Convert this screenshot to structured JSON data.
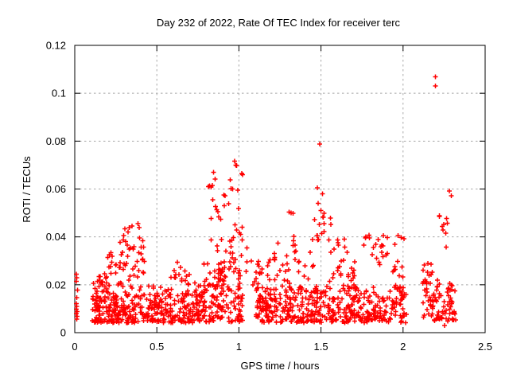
{
  "chart_data": {
    "type": "scatter",
    "title": "Day 232 of 2022, Rate Of TEC Index for receiver terc",
    "xlabel": "GPS time / hours",
    "ylabel": "ROTI / TECUs",
    "xlim": [
      0,
      2.5
    ],
    "ylim": [
      0,
      0.12
    ],
    "xticks": [
      0,
      0.5,
      1,
      1.5,
      2,
      2.5
    ],
    "yticks": [
      0,
      0.02,
      0.04,
      0.06,
      0.08,
      0.1,
      0.12
    ],
    "xtick_labels": [
      "0",
      "0.5",
      "1",
      "1.5",
      "2",
      "2.5"
    ],
    "ytick_labels": [
      "0",
      "0.02",
      "0.04",
      "0.06",
      "0.08",
      "0.1",
      "0.12"
    ],
    "grid": true,
    "legend": "none",
    "marker": "plus",
    "marker_color": "#ff0000",
    "grid_color": "#a8a8a8",
    "border_color": "#000000",
    "background": "#ffffff",
    "series_name": "ROTI",
    "notable_points": [
      [
        0.01,
        0.0245
      ],
      [
        0.013,
        0.023
      ],
      [
        0.01,
        0.0215
      ],
      [
        0.016,
        0.0178
      ],
      [
        0.012,
        0.0146
      ],
      [
        0.01,
        0.0122
      ],
      [
        0.013,
        0.011
      ],
      [
        0.01,
        0.0098
      ],
      [
        0.014,
        0.0088
      ],
      [
        0.01,
        0.0079
      ],
      [
        0.015,
        0.0068
      ],
      [
        0.011,
        0.0057
      ],
      [
        0.305,
        0.0433
      ],
      [
        0.35,
        0.0446
      ],
      [
        0.385,
        0.0455
      ],
      [
        0.415,
        0.0384
      ],
      [
        0.42,
        0.0357
      ],
      [
        0.425,
        0.0298
      ],
      [
        0.42,
        0.0249
      ],
      [
        0.625,
        0.0295
      ],
      [
        0.645,
        0.0272
      ],
      [
        0.814,
        0.061
      ],
      [
        0.822,
        0.0613
      ],
      [
        0.83,
        0.0608
      ],
      [
        0.838,
        0.0615
      ],
      [
        0.845,
        0.067
      ],
      [
        0.856,
        0.0641
      ],
      [
        0.84,
        0.0555
      ],
      [
        0.873,
        0.0506
      ],
      [
        0.878,
        0.0484
      ],
      [
        0.888,
        0.0473
      ],
      [
        0.908,
        0.0575
      ],
      [
        0.915,
        0.0572
      ],
      [
        0.938,
        0.0539
      ],
      [
        0.948,
        0.0638
      ],
      [
        0.952,
        0.0602
      ],
      [
        0.962,
        0.06
      ],
      [
        0.973,
        0.0717
      ],
      [
        0.982,
        0.07
      ],
      [
        0.987,
        0.0698
      ],
      [
        0.994,
        0.0595
      ],
      [
        1.018,
        0.0664
      ],
      [
        1.023,
        0.066
      ],
      [
        1.02,
        0.044
      ],
      [
        1.01,
        0.041
      ],
      [
        1.048,
        0.0354
      ],
      [
        1.075,
        0.03
      ],
      [
        1.118,
        0.0298
      ],
      [
        1.128,
        0.0251
      ],
      [
        1.138,
        0.025
      ],
      [
        1.305,
        0.0503
      ],
      [
        1.318,
        0.05
      ],
      [
        1.33,
        0.0498
      ],
      [
        1.493,
        0.0787
      ],
      [
        1.478,
        0.0605
      ],
      [
        1.508,
        0.058
      ],
      [
        1.482,
        0.054
      ],
      [
        1.5,
        0.051
      ],
      [
        1.515,
        0.0482
      ],
      [
        1.558,
        0.0478
      ],
      [
        1.56,
        0.0452
      ],
      [
        1.772,
        0.0395
      ],
      [
        1.792,
        0.0408
      ],
      [
        1.88,
        0.0405
      ],
      [
        1.905,
        0.0398
      ],
      [
        1.97,
        0.0405
      ],
      [
        1.99,
        0.0398
      ],
      [
        2.005,
        0.0392
      ],
      [
        2.198,
        0.1068
      ],
      [
        2.197,
        0.1031
      ],
      [
        2.282,
        0.0592
      ],
      [
        2.293,
        0.0572
      ],
      [
        2.262,
        0.0357
      ],
      [
        2.152,
        0.029
      ],
      [
        2.252,
        0.003
      ]
    ],
    "density_clusters": [
      {
        "x": [
          0.105,
          0.21
        ],
        "y": [
          0.016,
          0.0248
        ],
        "n": 22,
        "skew": 1.0
      },
      {
        "x": [
          0.105,
          0.45
        ],
        "y": [
          0.0042,
          0.016
        ],
        "n": 200,
        "skew": 1.35
      },
      {
        "x": [
          0.195,
          0.275
        ],
        "y": [
          0.016,
          0.034
        ],
        "n": 20,
        "skew": 1.1
      },
      {
        "x": [
          0.275,
          0.42
        ],
        "y": [
          0.028,
          0.0448
        ],
        "n": 26,
        "skew": 1.0
      },
      {
        "x": [
          0.275,
          0.44
        ],
        "y": [
          0.016,
          0.028
        ],
        "n": 18,
        "skew": 1.0
      },
      {
        "x": [
          0.45,
          0.56
        ],
        "y": [
          0.0042,
          0.0165
        ],
        "n": 65,
        "skew": 1.3
      },
      {
        "x": [
          0.45,
          0.56
        ],
        "y": [
          0.0165,
          0.021
        ],
        "n": 5,
        "skew": 1.0
      },
      {
        "x": [
          0.56,
          0.72
        ],
        "y": [
          0.0042,
          0.016
        ],
        "n": 70,
        "skew": 1.3
      },
      {
        "x": [
          0.55,
          0.7
        ],
        "y": [
          0.016,
          0.026
        ],
        "n": 22,
        "skew": 1.1
      },
      {
        "x": [
          0.72,
          0.8
        ],
        "y": [
          0.0042,
          0.018
        ],
        "n": 48,
        "skew": 1.25
      },
      {
        "x": [
          0.73,
          0.8
        ],
        "y": [
          0.018,
          0.0215
        ],
        "n": 5,
        "skew": 1.0
      },
      {
        "x": [
          0.8,
          1.025
        ],
        "y": [
          0.0045,
          0.02
        ],
        "n": 95,
        "skew": 1.3
      },
      {
        "x": [
          0.78,
          0.92
        ],
        "y": [
          0.018,
          0.03
        ],
        "n": 26,
        "skew": 1.0
      },
      {
        "x": [
          0.86,
          1.02
        ],
        "y": [
          0.02,
          0.038
        ],
        "n": 28,
        "skew": 1.0
      },
      {
        "x": [
          0.83,
          1.03
        ],
        "y": [
          0.038,
          0.053
        ],
        "n": 14,
        "skew": 1.0
      },
      {
        "x": [
          1.03,
          1.1
        ],
        "y": [
          0.018,
          0.03
        ],
        "n": 4,
        "skew": 1.0
      },
      {
        "x": [
          1.1,
          1.5
        ],
        "y": [
          0.0042,
          0.0195
        ],
        "n": 220,
        "skew": 1.35
      },
      {
        "x": [
          1.1,
          1.19
        ],
        "y": [
          0.0195,
          0.031
        ],
        "n": 12,
        "skew": 1.0
      },
      {
        "x": [
          1.2,
          1.36
        ],
        "y": [
          0.03,
          0.041
        ],
        "n": 13,
        "skew": 1.0
      },
      {
        "x": [
          1.21,
          1.33
        ],
        "y": [
          0.02,
          0.03
        ],
        "n": 10,
        "skew": 1.0
      },
      {
        "x": [
          1.36,
          1.46
        ],
        "y": [
          0.02,
          0.034
        ],
        "n": 9,
        "skew": 1.0
      },
      {
        "x": [
          1.44,
          1.53
        ],
        "y": [
          0.034,
          0.05
        ],
        "n": 12,
        "skew": 1.0
      },
      {
        "x": [
          1.5,
          2.02
        ],
        "y": [
          0.0042,
          0.0195
        ],
        "n": 230,
        "skew": 1.35
      },
      {
        "x": [
          1.52,
          1.66
        ],
        "y": [
          0.0195,
          0.04
        ],
        "n": 20,
        "skew": 1.15
      },
      {
        "x": [
          1.66,
          1.76
        ],
        "y": [
          0.018,
          0.03
        ],
        "n": 12,
        "skew": 1.0
      },
      {
        "x": [
          1.76,
          1.86
        ],
        "y": [
          0.028,
          0.0405
        ],
        "n": 10,
        "skew": 1.0
      },
      {
        "x": [
          1.86,
          1.96
        ],
        "y": [
          0.024,
          0.0395
        ],
        "n": 11,
        "skew": 1.0
      },
      {
        "x": [
          1.94,
          2.02
        ],
        "y": [
          0.014,
          0.03
        ],
        "n": 9,
        "skew": 1.0
      },
      {
        "x": [
          2.115,
          2.32
        ],
        "y": [
          0.0048,
          0.022
        ],
        "n": 95,
        "skew": 1.25
      },
      {
        "x": [
          2.12,
          2.18
        ],
        "y": [
          0.022,
          0.0292
        ],
        "n": 8,
        "skew": 1.0
      },
      {
        "x": [
          2.21,
          2.27
        ],
        "y": [
          0.0415,
          0.049
        ],
        "n": 8,
        "skew": 1.0
      }
    ],
    "random_seed": 11
  }
}
